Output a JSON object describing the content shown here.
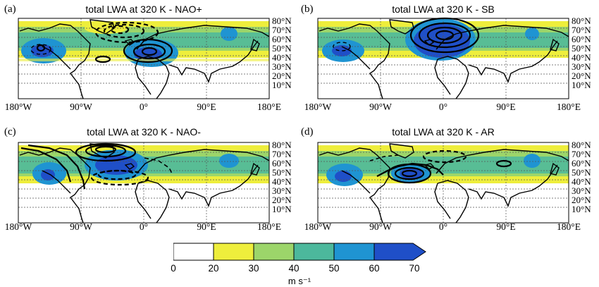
{
  "panels": [
    {
      "label": "(a)",
      "title": "total LWA at 320 K - NAO+"
    },
    {
      "label": "(b)",
      "title": "total LWA at 320 K - SB"
    },
    {
      "label": "(c)",
      "title": "total LWA at 320 K - NAO-"
    },
    {
      "label": "(d)",
      "title": "total LWA at 320 K - AR"
    }
  ],
  "lat_labels": [
    "80°N",
    "70°N",
    "60°N",
    "50°N",
    "40°N",
    "30°N",
    "20°N",
    "10°N"
  ],
  "lon_labels": [
    "180°W",
    "90°W",
    "0°",
    "90°E",
    "180°E"
  ],
  "colorbar": {
    "ticks": [
      "0",
      "20",
      "30",
      "40",
      "50",
      "60",
      "70"
    ],
    "unit": "m s⁻¹",
    "colors": [
      "#ffffff",
      "#eeee3c",
      "#9cd56a",
      "#4cb89c",
      "#1f94d2",
      "#1f4fc8"
    ]
  }
}
